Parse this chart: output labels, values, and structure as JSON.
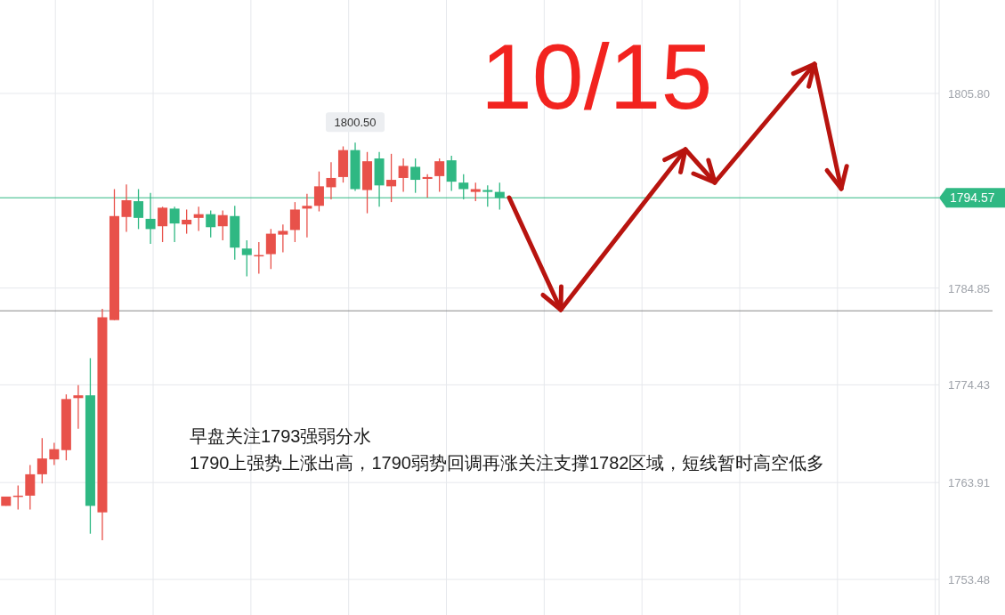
{
  "chart_data": {
    "type": "candlestick",
    "title": "10/15",
    "categories": [
      null,
      null,
      null,
      null,
      null,
      null,
      null,
      null,
      null,
      null,
      null,
      null,
      null,
      null,
      null,
      null,
      null,
      null,
      null,
      null,
      null,
      null,
      null,
      null,
      null,
      null,
      null,
      null,
      null,
      null,
      null,
      null,
      null,
      null,
      null,
      null,
      null,
      null,
      null,
      null,
      null,
      null,
      null,
      null,
      null,
      null,
      null,
      null,
      null,
      null,
      null,
      null,
      null,
      null,
      null,
      null,
      null,
      null,
      null,
      null,
      null,
      null,
      null,
      null,
      null,
      null,
      null,
      null,
      null,
      null,
      null,
      null,
      null,
      null,
      null,
      null,
      null,
      null
    ],
    "ohlc": [
      [
        1761.4,
        1762.4,
        1761.4,
        1762.4
      ],
      [
        1762.4,
        1763.6,
        1761.0,
        1762.5
      ],
      [
        1762.5,
        1765.8,
        1761.0,
        1764.8
      ],
      [
        1764.8,
        1768.7,
        1763.8,
        1766.5
      ],
      [
        1766.4,
        1768.2,
        1765.8,
        1767.5
      ],
      [
        1767.4,
        1773.4,
        1766.3,
        1772.9
      ],
      [
        1773.0,
        1774.4,
        1769.7,
        1773.3
      ],
      [
        1773.3,
        1777.3,
        1758.4,
        1761.4
      ],
      [
        1760.7,
        1782.6,
        1757.7,
        1781.7
      ],
      [
        1781.4,
        1795.5,
        1781.4,
        1792.6
      ],
      [
        1792.5,
        1796.0,
        1790.9,
        1794.3
      ],
      [
        1794.2,
        1795.5,
        1791.2,
        1792.4
      ],
      [
        1792.3,
        1795.1,
        1789.6,
        1791.2
      ],
      [
        1791.5,
        1793.6,
        1789.8,
        1793.5
      ],
      [
        1793.4,
        1793.6,
        1789.8,
        1791.8
      ],
      [
        1791.7,
        1793.3,
        1790.7,
        1792.2
      ],
      [
        1792.4,
        1793.6,
        1791.0,
        1792.8
      ],
      [
        1792.8,
        1793.2,
        1790.3,
        1791.4
      ],
      [
        1791.5,
        1793.2,
        1790.0,
        1792.7
      ],
      [
        1792.6,
        1793.7,
        1787.9,
        1789.2
      ],
      [
        1789.1,
        1790.0,
        1786.1,
        1788.4
      ],
      [
        1788.3,
        1789.8,
        1786.4,
        1788.4
      ],
      [
        1788.5,
        1791.2,
        1786.9,
        1790.7
      ],
      [
        1790.6,
        1791.7,
        1788.7,
        1791.0
      ],
      [
        1791.1,
        1794.1,
        1789.8,
        1793.3
      ],
      [
        1793.4,
        1795.0,
        1790.3,
        1793.7
      ],
      [
        1793.7,
        1797.4,
        1793.1,
        1795.8
      ],
      [
        1795.7,
        1798.4,
        1794.4,
        1796.7
      ],
      [
        1796.8,
        1800.1,
        1796.2,
        1799.7
      ],
      [
        1799.7,
        1800.5,
        1795.3,
        1795.5
      ],
      [
        1795.4,
        1799.5,
        1792.9,
        1798.5
      ],
      [
        1798.8,
        1799.5,
        1793.6,
        1795.9
      ],
      [
        1795.8,
        1799.3,
        1794.1,
        1796.5
      ],
      [
        1796.7,
        1798.8,
        1795.2,
        1798.0
      ],
      [
        1797.9,
        1798.8,
        1795.1,
        1796.5
      ],
      [
        1796.6,
        1797.1,
        1794.6,
        1796.8
      ],
      [
        1796.9,
        1798.8,
        1795.2,
        1798.5
      ],
      [
        1798.6,
        1799.1,
        1795.3,
        1796.3
      ],
      [
        1796.2,
        1797.1,
        1794.4,
        1795.5
      ],
      [
        1795.2,
        1796.2,
        1794.2,
        1795.5
      ],
      [
        1795.4,
        1795.9,
        1793.6,
        1795.2
      ],
      [
        1795.2,
        1796.2,
        1793.3,
        1794.57
      ],
      null,
      null,
      null,
      null,
      null,
      null,
      null,
      null,
      null,
      null,
      null,
      null,
      null,
      null,
      null,
      null,
      null,
      null,
      null,
      null,
      null,
      null,
      null,
      null,
      null,
      null,
      null,
      null,
      null,
      null,
      null,
      null,
      null,
      null,
      null,
      null
    ],
    "colors": [
      "#e8514a",
      "#e8514a",
      "#e8514a",
      "#e8514a",
      "#e8514a",
      "#e8514a",
      "#e8514a",
      "#2fb883",
      "#e8514a",
      "#e8514a",
      "#e8514a",
      "#2fb883",
      "#2fb883",
      "#e8514a",
      "#2fb883",
      "#e8514a",
      "#e8514a",
      "#2fb883",
      "#e8514a",
      "#2fb883",
      "#2fb883",
      "#e8514a",
      "#e8514a",
      "#e8514a",
      "#e8514a",
      "#e8514a",
      "#e8514a",
      "#e8514a",
      "#e8514a",
      "#2fb883",
      "#e8514a",
      "#2fb883",
      "#e8514a",
      "#e8514a",
      "#2fb883",
      "#e8514a",
      "#e8514a",
      "#2fb883",
      "#2fb883",
      "#e8514a",
      "#2fb883",
      "#2fb883",
      null,
      null,
      null,
      null,
      null,
      null,
      null,
      null,
      null,
      null,
      null,
      null,
      null,
      null,
      null,
      null,
      null,
      null,
      null,
      null,
      null,
      null,
      null,
      null,
      null,
      null,
      null,
      null,
      null,
      null,
      null,
      null,
      null,
      null,
      null,
      null
    ],
    "ylim": [
      1749.65,
      1815.86
    ],
    "yticks": [
      {
        "value": 1805.8,
        "label": "1805.80"
      },
      {
        "value": 1784.85,
        "label": "1784.85"
      },
      {
        "value": 1774.43,
        "label": "1774.43"
      },
      {
        "value": 1763.91,
        "label": "1763.91"
      },
      {
        "value": 1753.48,
        "label": "1753.48"
      }
    ],
    "tick_labels": "y",
    "grid": true,
    "ref_lines": [
      {
        "axis": "y",
        "value": 1794.57,
        "label": "1794.57",
        "color": "#2fb883"
      },
      {
        "axis": "y",
        "value": 1782.4,
        "color": "#888888"
      }
    ],
    "annotations": [
      "1800.50",
      "早盘关注1793强弱分水",
      "1790上强势上涨出高，1790弱势回调再涨关注支撑1782区域，短线暂时高空低多"
    ]
  }
}
